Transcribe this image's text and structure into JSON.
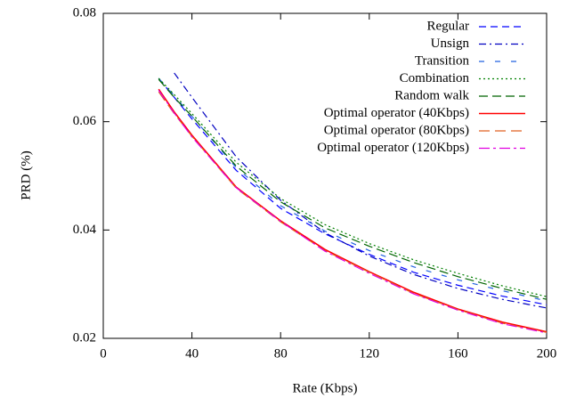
{
  "chart_data": {
    "type": "line",
    "xlabel": "Rate (Kbps)",
    "ylabel": "PRD (%)",
    "x": [
      25,
      32,
      40,
      60,
      80,
      100,
      120,
      140,
      160,
      180,
      200
    ],
    "xlim": [
      0,
      200
    ],
    "xticks": [
      0,
      40,
      80,
      120,
      160,
      200
    ],
    "ylim": [
      0.02,
      0.08
    ],
    "yticks": [
      0.02,
      0.04,
      0.06,
      0.08
    ],
    "legend": "upper right",
    "series": [
      {
        "name": "Regular",
        "color": "#0000ff",
        "values": [
          0.068,
          0.0645,
          0.0605,
          0.051,
          0.044,
          0.0393,
          0.0355,
          0.0322,
          0.0298,
          0.0278,
          0.0262
        ]
      },
      {
        "name": "Unsign",
        "color": "#0000c0",
        "values": [
          null,
          0.069,
          0.0645,
          0.0535,
          0.0455,
          0.0395,
          0.0352,
          0.0318,
          0.0292,
          0.0272,
          0.0256
        ]
      },
      {
        "name": "Transition",
        "color": "#2060e0",
        "values": [
          0.068,
          0.0648,
          0.061,
          0.0515,
          0.0445,
          0.0398,
          0.0362,
          0.0332,
          0.0308,
          0.0288,
          0.0269
        ]
      },
      {
        "name": "Combination",
        "color": "#008000",
        "values": [
          0.068,
          0.065,
          0.0615,
          0.0525,
          0.0458,
          0.041,
          0.0375,
          0.0345,
          0.032,
          0.0297,
          0.0277
        ]
      },
      {
        "name": "Random walk",
        "color": "#006400",
        "values": [
          0.0678,
          0.0645,
          0.061,
          0.0518,
          0.0452,
          0.0404,
          0.037,
          0.034,
          0.0314,
          0.0292,
          0.0272
        ]
      },
      {
        "name": "Optimal operator (40Kbps)",
        "color": "#ff0000",
        "values": [
          0.066,
          0.0618,
          0.0575,
          0.0479,
          0.0417,
          0.0364,
          0.0323,
          0.0285,
          0.0254,
          0.023,
          0.0212
        ]
      },
      {
        "name": "Optimal operator (80Kbps)",
        "color": "#e06020",
        "values": [
          0.0655,
          0.0615,
          0.0573,
          0.0477,
          0.0415,
          0.0362,
          0.0322,
          0.0283,
          0.0253,
          0.0228,
          0.0211
        ]
      },
      {
        "name": "Optimal operator (120Kbps)",
        "color": "#e000e0",
        "values": [
          0.0658,
          0.0616,
          0.0572,
          0.0478,
          0.0416,
          0.0361,
          0.032,
          0.0282,
          0.0252,
          0.0227,
          0.021
        ]
      }
    ]
  }
}
